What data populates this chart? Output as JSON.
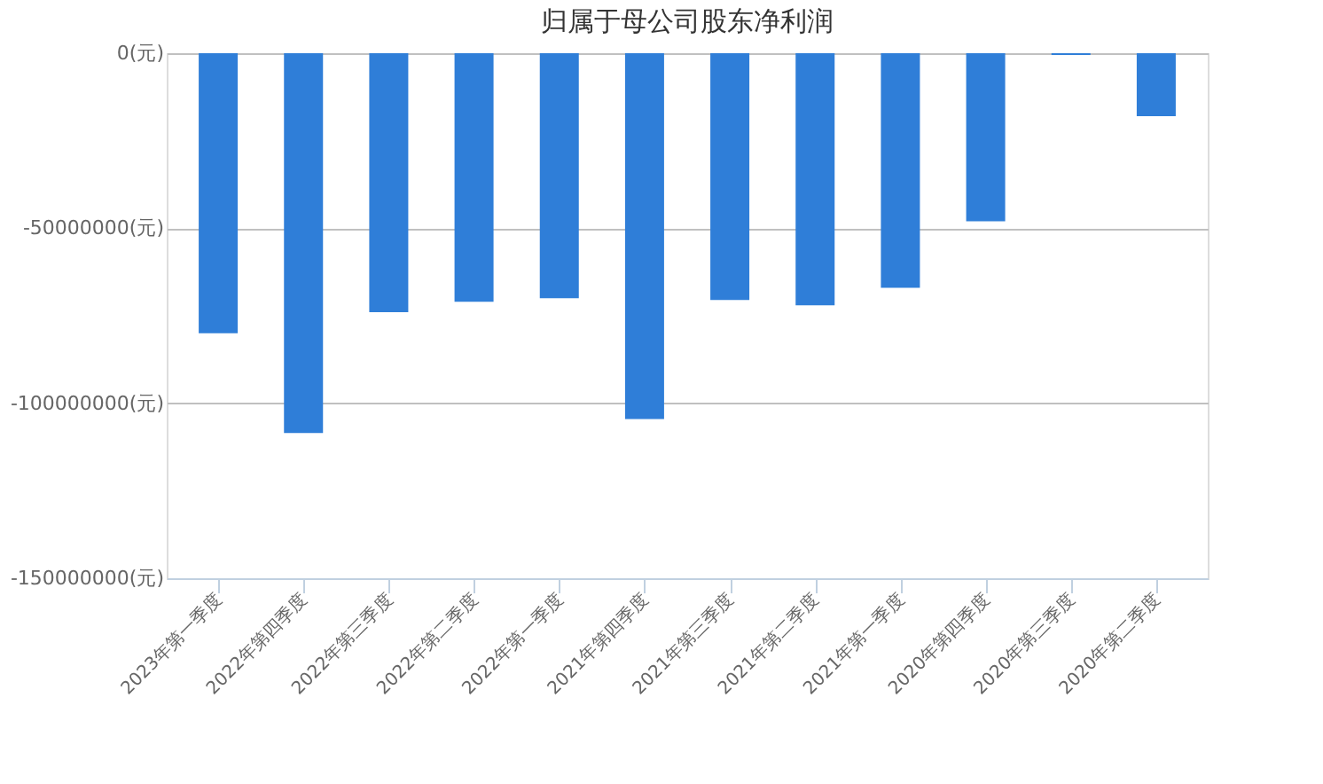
{
  "chart_data": {
    "type": "bar",
    "title": "归属于母公司股东净利润",
    "categories": [
      "2023年第一季度",
      "2022年第四季度",
      "2022年第三季度",
      "2022年第二季度",
      "2022年第一季度",
      "2021年第四季度",
      "2021年第三季度",
      "2021年第二季度",
      "2021年第一季度",
      "2020年第四季度",
      "2020年第三季度",
      "2020年第二季度"
    ],
    "values": [
      -80000000,
      -108500000,
      -74000000,
      -71000000,
      -70000000,
      -104500000,
      -70500000,
      -72000000,
      -67000000,
      -48000000,
      -500000,
      -18000000
    ],
    "color": "#2f7ed8",
    "ylim": [
      -150000000,
      0
    ],
    "yticks": [
      {
        "value": -150000000,
        "label": "-150000000(元)"
      },
      {
        "value": -100000000,
        "label": "-100000000(元)"
      },
      {
        "value": -50000000,
        "label": "-50000000(元)"
      },
      {
        "value": 0,
        "label": "0(元)"
      }
    ],
    "grid": "y"
  }
}
